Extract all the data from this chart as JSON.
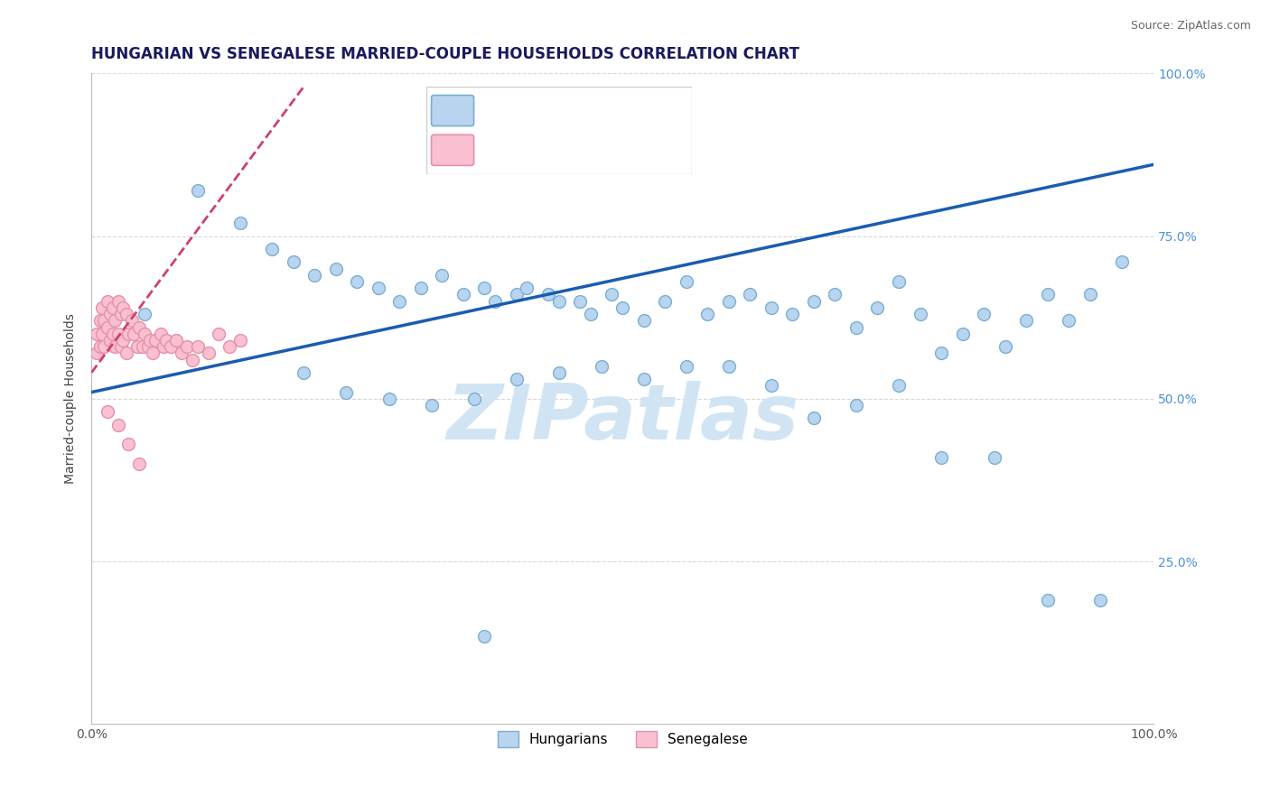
{
  "title": "HUNGARIAN VS SENEGALESE MARRIED-COUPLE HOUSEHOLDS CORRELATION CHART",
  "source": "Source: ZipAtlas.com",
  "ylabel": "Married-couple Households",
  "xlim": [
    0.0,
    1.0
  ],
  "ylim": [
    0.0,
    1.0
  ],
  "xticks": [
    0.0,
    0.25,
    0.5,
    0.75,
    1.0
  ],
  "yticks": [
    0.25,
    0.5,
    0.75,
    1.0
  ],
  "xtick_labels": [
    "0.0%",
    "",
    "",
    "",
    "100.0%"
  ],
  "ytick_labels_right": [
    "25.0%",
    "50.0%",
    "75.0%",
    "100.0%"
  ],
  "blue_color": "#b8d4ee",
  "blue_edge": "#7aafd4",
  "pink_color": "#f8c0d0",
  "pink_edge": "#e890a8",
  "blue_line_color": "#1a5cb0",
  "pink_line_color": "#d04070",
  "grid_color": "#d8d8d8",
  "watermark_color": "#d0e4f4",
  "blue_x": [
    0.37,
    0.05,
    0.1,
    0.14,
    0.17,
    0.19,
    0.21,
    0.23,
    0.25,
    0.27,
    0.29,
    0.31,
    0.33,
    0.35,
    0.37,
    0.38,
    0.4,
    0.41,
    0.43,
    0.44,
    0.46,
    0.47,
    0.49,
    0.5,
    0.52,
    0.54,
    0.56,
    0.58,
    0.6,
    0.62,
    0.64,
    0.66,
    0.68,
    0.7,
    0.72,
    0.74,
    0.76,
    0.78,
    0.8,
    0.82,
    0.84,
    0.86,
    0.88,
    0.9,
    0.92,
    0.94,
    0.97,
    0.2,
    0.24,
    0.28,
    0.32,
    0.36,
    0.4,
    0.44,
    0.48,
    0.52,
    0.56,
    0.6,
    0.64,
    0.68,
    0.72,
    0.76,
    0.8,
    0.85,
    0.9,
    0.95
  ],
  "blue_y": [
    0.135,
    0.63,
    0.82,
    0.77,
    0.73,
    0.71,
    0.69,
    0.7,
    0.68,
    0.67,
    0.65,
    0.67,
    0.69,
    0.66,
    0.67,
    0.65,
    0.66,
    0.67,
    0.66,
    0.65,
    0.65,
    0.63,
    0.66,
    0.64,
    0.62,
    0.65,
    0.68,
    0.63,
    0.65,
    0.66,
    0.64,
    0.63,
    0.65,
    0.66,
    0.61,
    0.64,
    0.68,
    0.63,
    0.57,
    0.6,
    0.63,
    0.58,
    0.62,
    0.66,
    0.62,
    0.66,
    0.71,
    0.54,
    0.51,
    0.5,
    0.49,
    0.5,
    0.53,
    0.54,
    0.55,
    0.53,
    0.55,
    0.55,
    0.52,
    0.47,
    0.49,
    0.52,
    0.41,
    0.41,
    0.19,
    0.19
  ],
  "pink_x": [
    0.005,
    0.005,
    0.008,
    0.008,
    0.01,
    0.01,
    0.012,
    0.012,
    0.015,
    0.015,
    0.018,
    0.018,
    0.02,
    0.02,
    0.022,
    0.022,
    0.025,
    0.025,
    0.028,
    0.028,
    0.03,
    0.03,
    0.033,
    0.033,
    0.035,
    0.038,
    0.04,
    0.043,
    0.045,
    0.048,
    0.05,
    0.053,
    0.055,
    0.058,
    0.06,
    0.065,
    0.068,
    0.07,
    0.075,
    0.08,
    0.085,
    0.09,
    0.095,
    0.1,
    0.11,
    0.12,
    0.13,
    0.14,
    0.015,
    0.025,
    0.035,
    0.045
  ],
  "pink_y": [
    0.6,
    0.57,
    0.62,
    0.58,
    0.64,
    0.6,
    0.62,
    0.58,
    0.65,
    0.61,
    0.63,
    0.59,
    0.64,
    0.6,
    0.62,
    0.58,
    0.65,
    0.6,
    0.63,
    0.58,
    0.64,
    0.59,
    0.63,
    0.57,
    0.6,
    0.62,
    0.6,
    0.58,
    0.61,
    0.58,
    0.6,
    0.58,
    0.59,
    0.57,
    0.59,
    0.6,
    0.58,
    0.59,
    0.58,
    0.59,
    0.57,
    0.58,
    0.56,
    0.58,
    0.57,
    0.6,
    0.58,
    0.59,
    0.48,
    0.46,
    0.43,
    0.4
  ],
  "title_fontsize": 12,
  "axis_fontsize": 10,
  "marker_size": 100,
  "marker_lw": 1.0,
  "blue_line_x0": 0.0,
  "blue_line_y0": 0.51,
  "blue_line_x1": 1.0,
  "blue_line_y1": 0.86,
  "pink_line_x0": 0.0,
  "pink_line_y0": 0.54,
  "pink_line_x1": 0.2,
  "pink_line_y1": 0.98
}
